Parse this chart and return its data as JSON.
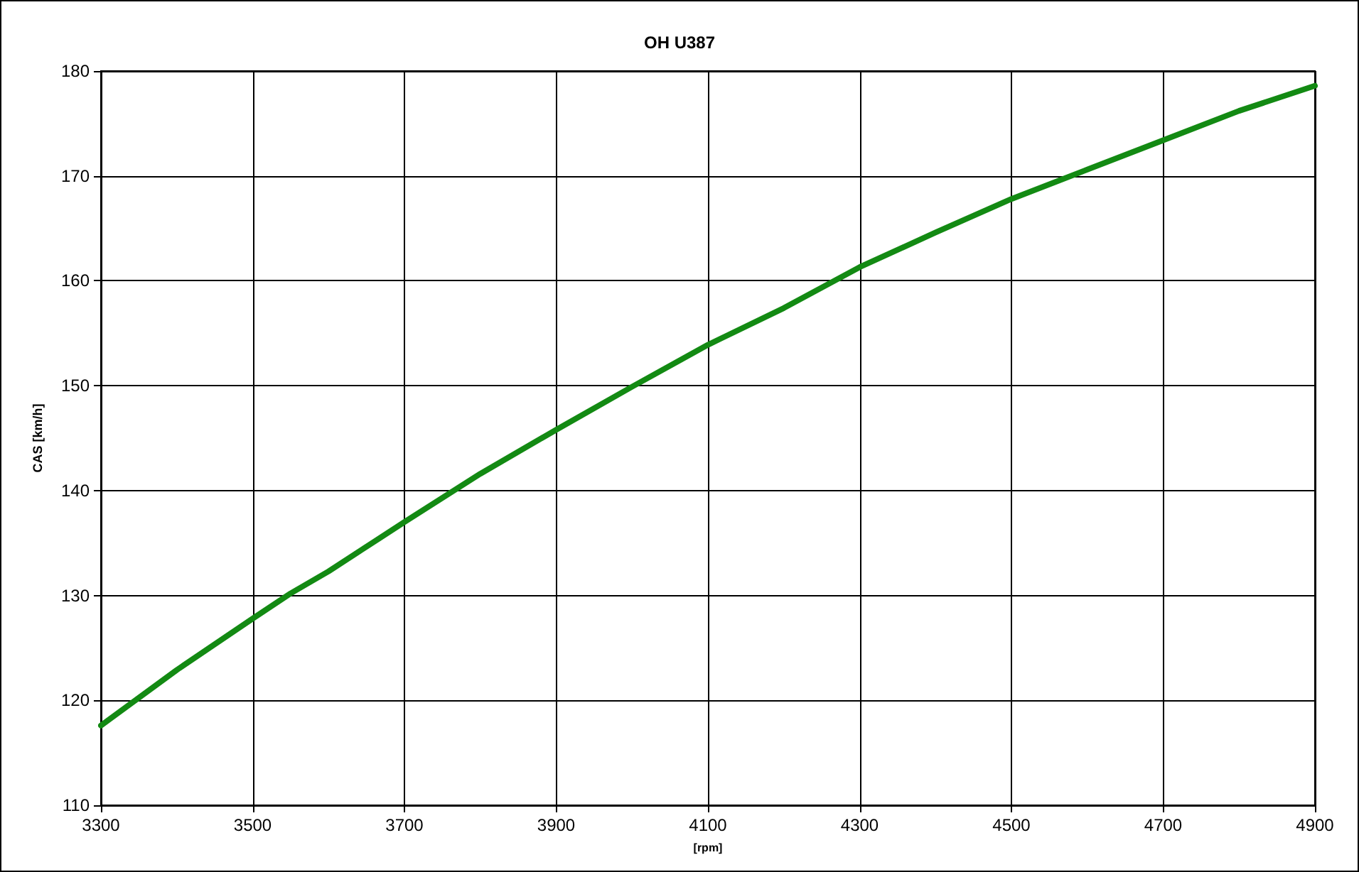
{
  "chart_data": {
    "type": "line",
    "title": "OH U387",
    "xlabel": "[rpm]",
    "ylabel": "CAS [km/h]",
    "x": [
      3300,
      3400,
      3500,
      3550,
      3600,
      3700,
      3800,
      3900,
      4000,
      4100,
      4200,
      4300,
      4400,
      4500,
      4600,
      4700,
      4800,
      4900
    ],
    "series": [
      {
        "color": "#138a13",
        "values": [
          117.6,
          122.9,
          127.8,
          130.2,
          132.3,
          137.0,
          141.6,
          145.8,
          149.9,
          153.9,
          157.4,
          161.3,
          164.6,
          167.8,
          170.6,
          173.4,
          176.2,
          178.6
        ]
      }
    ],
    "xlim": [
      3300,
      4900
    ],
    "xticks": [
      3300,
      3500,
      3700,
      3900,
      4100,
      4300,
      4500,
      4700,
      4900
    ],
    "ylim": [
      110,
      180
    ],
    "yticks": [
      110,
      120,
      130,
      140,
      150,
      160,
      170,
      180
    ],
    "grid": true,
    "marker": "none",
    "line_style": "solid"
  }
}
